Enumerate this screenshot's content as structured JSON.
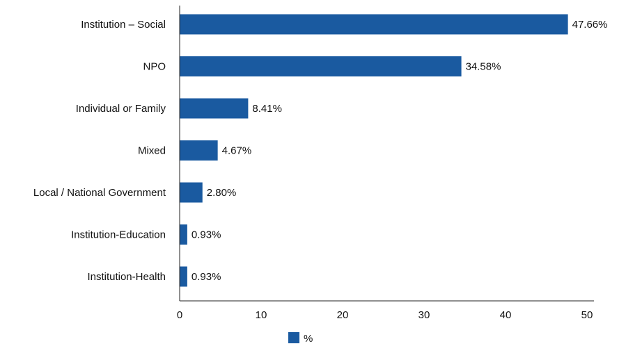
{
  "chart_data": {
    "type": "bar",
    "orientation": "horizontal",
    "categories": [
      "Institution – Social",
      "NPO",
      "Individual or Family",
      "Mixed",
      "Local / National Government",
      "Institution-Education",
      "Institution-Health"
    ],
    "series": [
      {
        "name": "%",
        "color": "#1a5aa0",
        "values": [
          47.66,
          34.58,
          8.41,
          4.67,
          2.8,
          0.93,
          0.93
        ],
        "value_labels": [
          "47.66%",
          "34.58%",
          "8.41%",
          "4.67%",
          "2.80%",
          "0.93%",
          "0.93%"
        ]
      }
    ],
    "xlim": [
      0,
      50
    ],
    "xticks": [
      0,
      10,
      20,
      30,
      40,
      50
    ],
    "xtick_labels": [
      "0",
      "10",
      "20",
      "30",
      "40",
      "50"
    ],
    "grid": false,
    "legend_position": "bottom-center"
  }
}
